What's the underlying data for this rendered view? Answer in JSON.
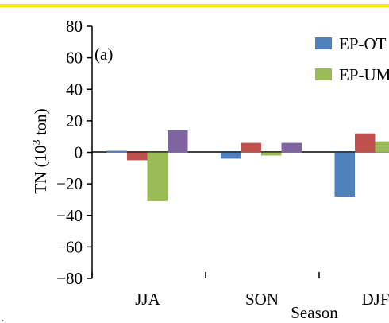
{
  "chart_data": {
    "type": "bar",
    "panel_label": "(a)",
    "xlabel": "Season",
    "ylabel_parts": [
      "TN (10",
      "3",
      " ton)"
    ],
    "ylim": [
      -80,
      80
    ],
    "yticks": [
      80,
      60,
      40,
      20,
      0,
      -20,
      -40,
      -60,
      -80
    ],
    "ytick_labels": [
      "80",
      "60",
      "40",
      "20",
      "0",
      "−20",
      "−40",
      "−60",
      "−80"
    ],
    "categories": [
      "JJA",
      "SON",
      "DJF"
    ],
    "category_labels": [
      "JJA",
      "SON",
      "DJF"
    ],
    "series": [
      {
        "name": "EP-OT",
        "color": "#4f81bd",
        "values": [
          1,
          -4,
          -28
        ]
      },
      {
        "name": "",
        "color": "#c0504d",
        "values": [
          -5,
          6,
          12
        ]
      },
      {
        "name": "EP-UM",
        "color": "#9bbb59",
        "values": [
          -31,
          -2,
          7
        ]
      },
      {
        "name": "",
        "color": "#8064a2",
        "values": [
          14,
          6,
          null
        ]
      }
    ],
    "legend": [
      "EP-OT",
      "EP-UM"
    ],
    "legend_position": "top-right",
    "grid": false,
    "accent_rule_color": "#ffe600"
  }
}
